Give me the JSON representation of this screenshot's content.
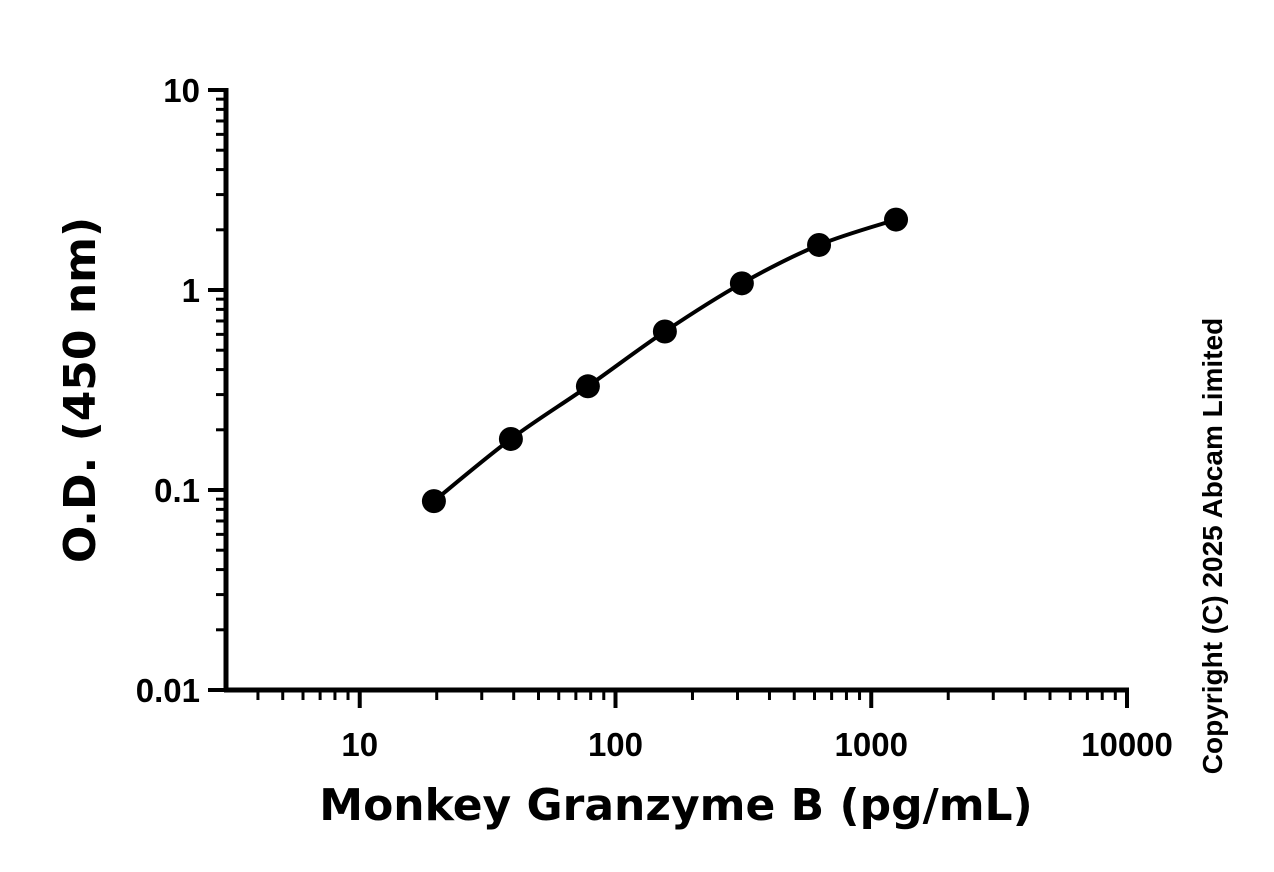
{
  "chart_data": {
    "type": "scatter",
    "title": "",
    "xlabel": "Monkey Granzyme B (pg/mL)",
    "ylabel": "O.D. (450 nm)",
    "x_scale": "log",
    "y_scale": "log",
    "xlim": [
      3,
      10000
    ],
    "ylim": [
      0.01,
      10
    ],
    "x_tick_labels": [
      "10",
      "100",
      "1000",
      "10000"
    ],
    "x_tick_values": [
      10,
      100,
      1000,
      10000
    ],
    "y_tick_labels": [
      "0.01",
      "0.1",
      "1",
      "10"
    ],
    "y_tick_values": [
      0.01,
      0.1,
      1,
      10
    ],
    "grid": false,
    "fit_curve": true,
    "series": [
      {
        "x": [
          19.5,
          39,
          78,
          156,
          312,
          625,
          1250
        ],
        "y": [
          0.088,
          0.18,
          0.33,
          0.62,
          1.08,
          1.68,
          2.25
        ],
        "color": "#000000"
      }
    ],
    "copyright": "Copyright (C) 2025 Abcam Limited"
  }
}
